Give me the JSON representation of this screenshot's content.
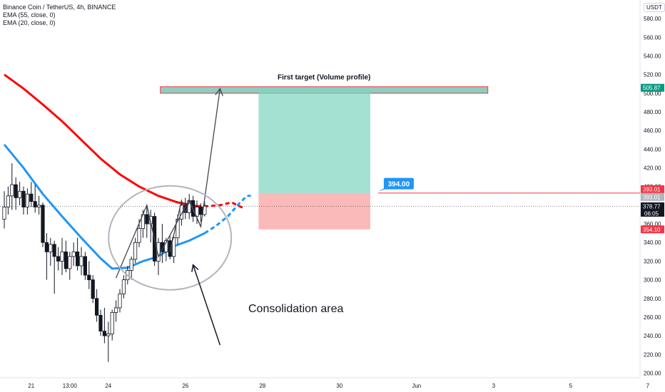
{
  "header": {
    "title": "Binance Coin / TetherUS, 4h, BINANCE",
    "indicators": [
      "EMA (55, close, 0)",
      "EMA (20, close, 0)"
    ],
    "unit": "USDT"
  },
  "chart_data": {
    "type": "candlestick",
    "symbol": "Binance Coin / TetherUS",
    "interval": "4h",
    "exchange": "BINANCE",
    "ylim": [
      195,
      600
    ],
    "y_ticks": [
      200,
      220,
      240,
      260,
      280,
      300,
      320,
      340,
      360,
      380,
      400,
      420,
      440,
      460,
      480,
      500,
      520,
      540,
      560,
      580
    ],
    "x_ticks": [
      {
        "bar": 7,
        "label": "21"
      },
      {
        "bar": 17,
        "label": "13:00"
      },
      {
        "bar": 27,
        "label": "24"
      },
      {
        "bar": 47,
        "label": "26"
      },
      {
        "bar": 67,
        "label": "28"
      },
      {
        "bar": 87,
        "label": "30"
      },
      {
        "bar": 107,
        "label": "Jun"
      },
      {
        "bar": 127,
        "label": "3"
      },
      {
        "bar": 147,
        "label": "5"
      },
      {
        "bar": 167,
        "label": "7"
      }
    ],
    "candles": [
      {
        "o": 365,
        "h": 395,
        "l": 355,
        "c": 378
      },
      {
        "o": 378,
        "h": 400,
        "l": 370,
        "c": 390
      },
      {
        "o": 390,
        "h": 425,
        "l": 375,
        "c": 402
      },
      {
        "o": 402,
        "h": 410,
        "l": 375,
        "c": 388
      },
      {
        "o": 388,
        "h": 405,
        "l": 380,
        "c": 395
      },
      {
        "o": 395,
        "h": 400,
        "l": 370,
        "c": 378
      },
      {
        "o": 378,
        "h": 398,
        "l": 370,
        "c": 392
      },
      {
        "o": 392,
        "h": 405,
        "l": 378,
        "c": 384
      },
      {
        "o": 384,
        "h": 402,
        "l": 372,
        "c": 378
      },
      {
        "o": 378,
        "h": 390,
        "l": 370,
        "c": 380
      },
      {
        "o": 380,
        "h": 383,
        "l": 335,
        "c": 340
      },
      {
        "o": 340,
        "h": 350,
        "l": 300,
        "c": 330
      },
      {
        "o": 330,
        "h": 345,
        "l": 315,
        "c": 338
      },
      {
        "o": 338,
        "h": 342,
        "l": 285,
        "c": 325
      },
      {
        "o": 325,
        "h": 335,
        "l": 310,
        "c": 320
      },
      {
        "o": 320,
        "h": 345,
        "l": 305,
        "c": 330
      },
      {
        "o": 330,
        "h": 342,
        "l": 308,
        "c": 312
      },
      {
        "o": 312,
        "h": 330,
        "l": 300,
        "c": 325
      },
      {
        "o": 325,
        "h": 340,
        "l": 315,
        "c": 330
      },
      {
        "o": 330,
        "h": 345,
        "l": 310,
        "c": 315
      },
      {
        "o": 315,
        "h": 335,
        "l": 305,
        "c": 325
      },
      {
        "o": 325,
        "h": 330,
        "l": 300,
        "c": 305
      },
      {
        "o": 305,
        "h": 320,
        "l": 290,
        "c": 300
      },
      {
        "o": 300,
        "h": 305,
        "l": 275,
        "c": 280
      },
      {
        "o": 280,
        "h": 290,
        "l": 255,
        "c": 262
      },
      {
        "o": 262,
        "h": 268,
        "l": 240,
        "c": 245
      },
      {
        "o": 245,
        "h": 270,
        "l": 232,
        "c": 240
      },
      {
        "o": 240,
        "h": 255,
        "l": 212,
        "c": 242
      },
      {
        "o": 242,
        "h": 268,
        "l": 235,
        "c": 265
      },
      {
        "o": 265,
        "h": 278,
        "l": 255,
        "c": 270
      },
      {
        "o": 270,
        "h": 290,
        "l": 265,
        "c": 285
      },
      {
        "o": 285,
        "h": 305,
        "l": 280,
        "c": 300
      },
      {
        "o": 300,
        "h": 315,
        "l": 295,
        "c": 310
      },
      {
        "o": 310,
        "h": 325,
        "l": 300,
        "c": 322
      },
      {
        "o": 322,
        "h": 345,
        "l": 318,
        "c": 340
      },
      {
        "o": 340,
        "h": 365,
        "l": 335,
        "c": 355
      },
      {
        "o": 355,
        "h": 375,
        "l": 345,
        "c": 370
      },
      {
        "o": 370,
        "h": 380,
        "l": 345,
        "c": 360
      },
      {
        "o": 360,
        "h": 375,
        "l": 340,
        "c": 368
      },
      {
        "o": 368,
        "h": 372,
        "l": 315,
        "c": 320
      },
      {
        "o": 320,
        "h": 345,
        "l": 305,
        "c": 340
      },
      {
        "o": 340,
        "h": 360,
        "l": 318,
        "c": 330
      },
      {
        "o": 330,
        "h": 345,
        "l": 320,
        "c": 342
      },
      {
        "o": 342,
        "h": 348,
        "l": 322,
        "c": 325
      },
      {
        "o": 325,
        "h": 348,
        "l": 318,
        "c": 345
      },
      {
        "o": 345,
        "h": 370,
        "l": 338,
        "c": 365
      },
      {
        "o": 365,
        "h": 385,
        "l": 358,
        "c": 380
      },
      {
        "o": 380,
        "h": 388,
        "l": 365,
        "c": 372
      },
      {
        "o": 372,
        "h": 392,
        "l": 365,
        "c": 385
      },
      {
        "o": 385,
        "h": 390,
        "l": 362,
        "c": 368
      },
      {
        "o": 368,
        "h": 385,
        "l": 360,
        "c": 378
      },
      {
        "o": 378,
        "h": 382,
        "l": 362,
        "c": 370
      },
      {
        "o": 370,
        "h": 384,
        "l": 368,
        "c": 379
      }
    ],
    "ema55": {
      "solid": [
        [
          0,
          520
        ],
        [
          5,
          505
        ],
        [
          10,
          488
        ],
        [
          15,
          470
        ],
        [
          20,
          450
        ],
        [
          25,
          430
        ],
        [
          30,
          413
        ],
        [
          35,
          400
        ],
        [
          40,
          390
        ],
        [
          45,
          383
        ],
        [
          50,
          379
        ]
      ],
      "dashed": [
        [
          50,
          379
        ],
        [
          53,
          379
        ],
        [
          56,
          380
        ],
        [
          59,
          383
        ],
        [
          62,
          377
        ]
      ]
    },
    "ema20": {
      "solid": [
        [
          0,
          445
        ],
        [
          5,
          420
        ],
        [
          10,
          392
        ],
        [
          15,
          368
        ],
        [
          20,
          345
        ],
        [
          25,
          323
        ],
        [
          28,
          312
        ],
        [
          32,
          313
        ],
        [
          36,
          320
        ],
        [
          40,
          325
        ],
        [
          44,
          336
        ],
        [
          48,
          342
        ],
        [
          52,
          350
        ]
      ],
      "dashed": [
        [
          52,
          350
        ],
        [
          55,
          358
        ],
        [
          58,
          368
        ],
        [
          61,
          382
        ],
        [
          63,
          390
        ],
        [
          64,
          390
        ]
      ]
    },
    "last_price": 378.77,
    "countdown": "06:05",
    "price_labels": [
      {
        "value": 505.87,
        "text": "505.87",
        "color": "#089981"
      },
      {
        "value": 393.01,
        "text": "393.01",
        "color": "#f23645"
      },
      {
        "value": 393.01,
        "text": "393.01",
        "color": "#b2b5be"
      },
      {
        "value": 378.77,
        "text": "378.77",
        "color": "#131722"
      },
      {
        "value": 354.1,
        "text": "354.10",
        "color": "#f23645"
      }
    ],
    "annotations": {
      "target_zone": {
        "bar_from": 40.5,
        "bar_to": 125.5,
        "price_top": 507,
        "price_bottom": 500,
        "label": "First target (Volume profile)"
      },
      "long_position": {
        "bar_from": 66,
        "bar_to": 95,
        "entry": 393.01,
        "target": 505.87,
        "stop": 354.1
      },
      "entry_line": {
        "price": 393.01,
        "bar_from": 97
      },
      "callout": {
        "text": "394.00",
        "price": 394
      },
      "consolidation_label": "Consolidation area",
      "zigzag": [
        [
          29,
          302
        ],
        [
          37,
          380
        ],
        [
          40,
          325
        ],
        [
          48,
          386
        ],
        [
          51,
          357
        ],
        [
          56,
          505
        ]
      ],
      "zigzag_small": [
        [
          43,
          330
        ],
        [
          46,
          385
        ],
        [
          47,
          372
        ],
        [
          48,
          384
        ],
        [
          51,
          357
        ]
      ],
      "ellipse_center": {
        "bar": 43,
        "price": 345
      },
      "pointer_arrow": [
        [
          56,
          230
        ],
        [
          49,
          316
        ]
      ],
      "color_up": "#ffffff",
      "color_down": "#131722",
      "ema55_color": "#ff0000",
      "ema20_color": "#2196f3"
    }
  }
}
